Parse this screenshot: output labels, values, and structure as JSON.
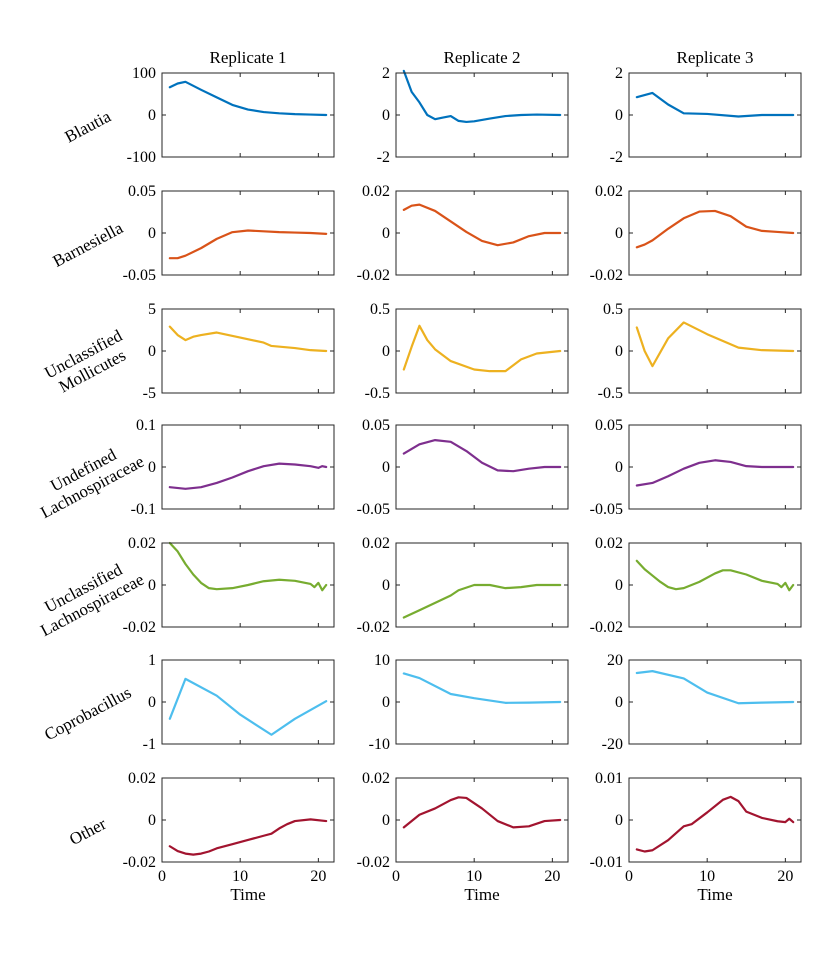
{
  "chart_data": {
    "type": "line",
    "columns": [
      "Replicate 1",
      "Replicate 2",
      "Replicate 3"
    ],
    "xlabel": "Time",
    "xlim": [
      0,
      22
    ],
    "xticks": [
      0,
      10,
      20
    ],
    "rows": [
      {
        "label": [
          "Blautia"
        ],
        "color": "#0072BD",
        "panels": [
          {
            "yticks": [
              "100",
              "0",
              "-100"
            ],
            "yrange": [
              -100,
              100
            ],
            "x": [
              1,
              2,
              3,
              5,
              7,
              9,
              11,
              13,
              15,
              17,
              19,
              21
            ],
            "y": [
              66,
              75,
              79,
              60,
              42,
              24,
              13,
              7,
              4,
              2,
              1,
              0
            ]
          },
          {
            "yticks": [
              "2",
              "0",
              "-2"
            ],
            "yrange": [
              -2,
              2
            ],
            "x": [
              1,
              1.5,
              2,
              3,
              4,
              5,
              6,
              7,
              8,
              9,
              10,
              12,
              14,
              16,
              18,
              21
            ],
            "y": [
              2.1,
              1.6,
              1.1,
              0.6,
              0.0,
              -0.2,
              -0.12,
              -0.05,
              -0.28,
              -0.33,
              -0.3,
              -0.17,
              -0.05,
              0.0,
              0.02,
              0.0
            ]
          },
          {
            "yticks": [
              "2",
              "0",
              "-2"
            ],
            "yrange": [
              -2,
              2
            ],
            "x": [
              1,
              2,
              3,
              5,
              7,
              10,
              14,
              17,
              21
            ],
            "y": [
              0.85,
              0.95,
              1.05,
              0.5,
              0.08,
              0.05,
              -0.07,
              0.0,
              0.0
            ]
          }
        ]
      },
      {
        "label": [
          "Barnesiella"
        ],
        "color": "#D95319",
        "panels": [
          {
            "yticks": [
              "0.05",
              "0",
              "-0.05"
            ],
            "yrange": [
              -0.05,
              0.05
            ],
            "x": [
              1,
              2,
              3,
              5,
              7,
              9,
              11,
              13,
              15,
              17,
              19,
              21
            ],
            "y": [
              -0.03,
              -0.03,
              -0.027,
              -0.018,
              -0.007,
              0.001,
              0.003,
              0.002,
              0.001,
              0.0005,
              0.0,
              -0.001
            ]
          },
          {
            "yticks": [
              "0.02",
              "0",
              "-0.02"
            ],
            "yrange": [
              -0.02,
              0.02
            ],
            "x": [
              1,
              2,
              3,
              5,
              7,
              9,
              11,
              13,
              15,
              17,
              19,
              21
            ],
            "y": [
              0.011,
              0.013,
              0.0135,
              0.0105,
              0.0055,
              0.0005,
              -0.0038,
              -0.0058,
              -0.0045,
              -0.0015,
              0.0,
              0.0
            ]
          },
          {
            "yticks": [
              "0.02",
              "0",
              "-0.02"
            ],
            "yrange": [
              -0.02,
              0.02
            ],
            "x": [
              1,
              2,
              3,
              5,
              7,
              9,
              11,
              13,
              15,
              17,
              19,
              21
            ],
            "y": [
              -0.0068,
              -0.0055,
              -0.0035,
              0.002,
              0.007,
              0.0102,
              0.0105,
              0.008,
              0.003,
              0.001,
              0.0005,
              0.0
            ]
          }
        ]
      },
      {
        "label": [
          "Unclassified",
          "Mollicutes"
        ],
        "color": "#EDB120",
        "panels": [
          {
            "yticks": [
              "5",
              "0",
              "-5"
            ],
            "yrange": [
              -5,
              5
            ],
            "x": [
              1,
              2,
              3,
              4,
              5,
              7,
              10,
              13,
              14,
              17,
              19,
              21
            ],
            "y": [
              2.9,
              1.9,
              1.3,
              1.7,
              1.9,
              2.2,
              1.6,
              1.0,
              0.6,
              0.35,
              0.1,
              0.0
            ]
          },
          {
            "yticks": [
              "0.5",
              "0",
              "-0.5"
            ],
            "yrange": [
              -0.5,
              0.5
            ],
            "x": [
              1,
              2,
              3,
              4,
              5,
              7,
              10,
              12,
              14,
              16,
              18,
              21
            ],
            "y": [
              -0.22,
              0.05,
              0.3,
              0.13,
              0.02,
              -0.12,
              -0.22,
              -0.24,
              -0.24,
              -0.1,
              -0.03,
              0.0
            ]
          },
          {
            "yticks": [
              "0.5",
              "0",
              "-0.5"
            ],
            "yrange": [
              -0.5,
              0.5
            ],
            "x": [
              1,
              2,
              3,
              5,
              7,
              10,
              14,
              17,
              21
            ],
            "y": [
              0.28,
              0.0,
              -0.18,
              0.15,
              0.34,
              0.2,
              0.04,
              0.01,
              0.0
            ]
          }
        ]
      },
      {
        "label": [
          "Undefined",
          "Lachnospiraceae"
        ],
        "color": "#7E2F8E",
        "panels": [
          {
            "yticks": [
              "0.1",
              "0",
              "-0.1"
            ],
            "yrange": [
              -0.1,
              0.1
            ],
            "x": [
              1,
              3,
              5,
              7,
              9,
              11,
              13,
              15,
              17,
              19,
              20,
              20.5,
              21
            ],
            "y": [
              -0.048,
              -0.052,
              -0.048,
              -0.038,
              -0.025,
              -0.01,
              0.002,
              0.008,
              0.006,
              0.002,
              -0.002,
              0.002,
              0.0
            ]
          },
          {
            "yticks": [
              "0.05",
              "0",
              "-0.05"
            ],
            "yrange": [
              -0.05,
              0.05
            ],
            "x": [
              1,
              3,
              5,
              7,
              9,
              11,
              13,
              15,
              17,
              19,
              21
            ],
            "y": [
              0.016,
              0.027,
              0.032,
              0.03,
              0.019,
              0.005,
              -0.004,
              -0.005,
              -0.002,
              0.0,
              0.0
            ]
          },
          {
            "yticks": [
              "0.05",
              "0",
              "-0.05"
            ],
            "yrange": [
              -0.05,
              0.05
            ],
            "x": [
              1,
              3,
              5,
              7,
              9,
              11,
              13,
              15,
              17,
              19,
              21
            ],
            "y": [
              -0.022,
              -0.019,
              -0.011,
              -0.002,
              0.005,
              0.008,
              0.006,
              0.001,
              0.0,
              0.0,
              0.0
            ]
          }
        ]
      },
      {
        "label": [
          "Unclassified",
          "Lachnospiraceae"
        ],
        "color": "#77AC30",
        "panels": [
          {
            "yticks": [
              "0.02",
              "0",
              "-0.02"
            ],
            "yrange": [
              -0.02,
              0.02
            ],
            "x": [
              1,
              2,
              3,
              4,
              5,
              6,
              7,
              9,
              11,
              13,
              15,
              17,
              19,
              19.5,
              20,
              20.5,
              21
            ],
            "y": [
              0.02,
              0.016,
              0.01,
              0.005,
              0.001,
              -0.0015,
              -0.002,
              -0.0015,
              0.0,
              0.0018,
              0.0025,
              0.002,
              0.0005,
              -0.001,
              0.001,
              -0.0025,
              0.0
            ]
          },
          {
            "yticks": [
              "0.02",
              "0",
              "-0.02"
            ],
            "yrange": [
              -0.02,
              0.02
            ],
            "x": [
              1,
              3,
              5,
              7,
              8,
              10,
              12,
              14,
              16,
              18,
              21
            ],
            "y": [
              -0.0155,
              -0.012,
              -0.0085,
              -0.005,
              -0.0025,
              0.0,
              0.0,
              -0.0015,
              -0.001,
              0.0,
              0.0
            ]
          },
          {
            "yticks": [
              "0.02",
              "0",
              "-0.02"
            ],
            "yrange": [
              -0.02,
              0.02
            ],
            "x": [
              1,
              2,
              3,
              4,
              5,
              6,
              7,
              9,
              11,
              12,
              13,
              15,
              17,
              19,
              19.5,
              20,
              20.5,
              21
            ],
            "y": [
              0.0115,
              0.0075,
              0.0045,
              0.0015,
              -0.001,
              -0.002,
              -0.0015,
              0.0015,
              0.0055,
              0.007,
              0.007,
              0.005,
              0.002,
              0.0005,
              -0.001,
              0.001,
              -0.0025,
              0.0
            ]
          }
        ]
      },
      {
        "label": [
          "Coprobacillus"
        ],
        "color": "#4DBEEE",
        "panels": [
          {
            "yticks": [
              "1",
              "0",
              "-1"
            ],
            "yrange": [
              -1,
              1
            ],
            "x": [
              1,
              3,
              7,
              10,
              14,
              17,
              21
            ],
            "y": [
              -0.4,
              0.55,
              0.15,
              -0.3,
              -0.78,
              -0.4,
              0.02
            ]
          },
          {
            "yticks": [
              "10",
              "0",
              "-10"
            ],
            "yrange": [
              -10,
              10
            ],
            "x": [
              1,
              3,
              7,
              10,
              14,
              17,
              21
            ],
            "y": [
              6.8,
              5.7,
              1.9,
              0.9,
              -0.2,
              -0.15,
              0.0
            ]
          },
          {
            "yticks": [
              "20",
              "0",
              "-20"
            ],
            "yrange": [
              -20,
              20
            ],
            "x": [
              1,
              3,
              7,
              10,
              14,
              17,
              21
            ],
            "y": [
              13.8,
              14.7,
              11.2,
              4.5,
              -0.6,
              -0.3,
              0.0
            ]
          }
        ]
      },
      {
        "label": [
          "Other"
        ],
        "color": "#A2142F",
        "panels": [
          {
            "yticks": [
              "0.02",
              "0",
              "-0.02"
            ],
            "yrange": [
              -0.02,
              0.02
            ],
            "x": [
              1,
              2,
              3,
              4,
              5,
              6,
              7,
              9,
              11,
              13,
              14,
              15,
              16,
              17,
              19,
              21
            ],
            "y": [
              -0.0125,
              -0.0148,
              -0.016,
              -0.0165,
              -0.016,
              -0.015,
              -0.0135,
              -0.0115,
              -0.0095,
              -0.0075,
              -0.0065,
              -0.004,
              -0.002,
              -0.0005,
              0.0003,
              -0.0005
            ]
          },
          {
            "yticks": [
              "0.02",
              "0",
              "-0.02"
            ],
            "yrange": [
              -0.02,
              0.02
            ],
            "x": [
              1,
              3,
              5,
              7,
              8,
              9,
              11,
              13,
              15,
              17,
              19,
              21
            ],
            "y": [
              -0.0035,
              0.0025,
              0.0055,
              0.0095,
              0.0108,
              0.0105,
              0.0055,
              -0.0005,
              -0.0035,
              -0.003,
              -0.0005,
              0.0
            ]
          },
          {
            "yticks": [
              "0.01",
              "0",
              "-0.01"
            ],
            "yrange": [
              -0.01,
              0.01
            ],
            "x": [
              1,
              2,
              3,
              5,
              7,
              8,
              10,
              12,
              13,
              14,
              15,
              17,
              19,
              20,
              20.5,
              21
            ],
            "y": [
              -0.007,
              -0.0075,
              -0.0072,
              -0.0048,
              -0.0015,
              -0.001,
              0.0018,
              0.0048,
              0.0055,
              0.0045,
              0.002,
              0.0005,
              -0.0003,
              -0.0005,
              0.0003,
              -0.0005
            ]
          }
        ]
      }
    ]
  }
}
